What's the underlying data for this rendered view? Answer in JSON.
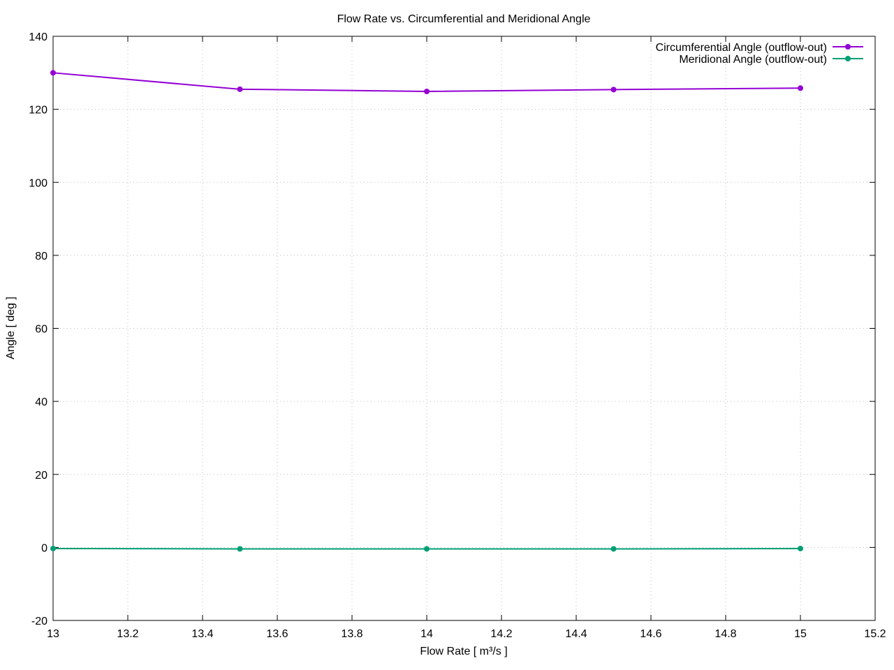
{
  "chart_data": {
    "type": "line",
    "title": "Flow Rate vs. Circumferential and Meridional Angle",
    "xlabel": "Flow Rate [ m³/s ]",
    "ylabel": "Angle [ deg ]",
    "xlim": [
      13,
      15.2
    ],
    "ylim": [
      -20,
      140
    ],
    "x_ticks": [
      "13",
      "13.2",
      "13.4",
      "13.6",
      "13.8",
      "14",
      "14.2",
      "14.4",
      "14.6",
      "14.8",
      "15",
      "15.2"
    ],
    "y_ticks": [
      "-20",
      "0",
      "20",
      "40",
      "60",
      "80",
      "100",
      "120",
      "140"
    ],
    "grid": true,
    "legend_position": "top-right",
    "series": [
      {
        "name": "Circumferential Angle (outflow-out)",
        "color": "#9400d3",
        "x": [
          13,
          13.5,
          14,
          14.5,
          15
        ],
        "y": [
          130,
          125.5,
          124.9,
          125.4,
          125.8
        ]
      },
      {
        "name": "Meridional Angle (outflow-out)",
        "color": "#009e73",
        "x": [
          13,
          13.5,
          14,
          14.5,
          15
        ],
        "y": [
          -0.3,
          -0.4,
          -0.4,
          -0.4,
          -0.3
        ]
      }
    ]
  }
}
